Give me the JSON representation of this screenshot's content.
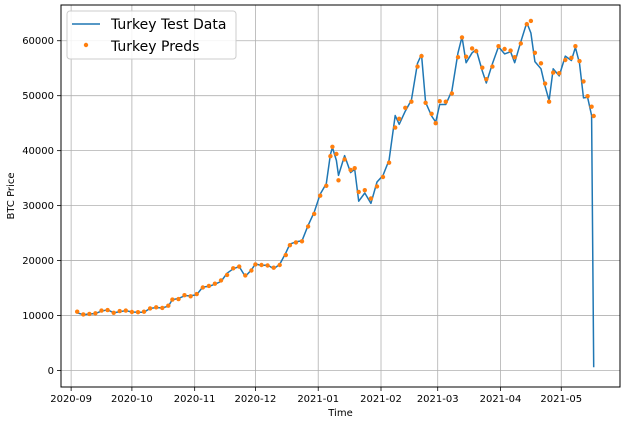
{
  "chart_data": {
    "type": "line",
    "title": "",
    "xlabel": "Time",
    "ylabel": "BTC Price",
    "grid": true,
    "legend_position": "top-left",
    "xlim": [
      "2020-08-27",
      "2021-05-30"
    ],
    "ylim": [
      -3000,
      66500
    ],
    "x_tick_labels": [
      "2020-09",
      "2020-10",
      "2020-11",
      "2020-12",
      "2021-01",
      "2021-02",
      "2021-03",
      "2021-04",
      "2021-05"
    ],
    "x_tick_values": [
      "2020-09-01",
      "2020-10-01",
      "2020-11-01",
      "2020-12-01",
      "2021-01-01",
      "2021-02-01",
      "2021-03-01",
      "2021-04-01",
      "2021-05-01"
    ],
    "y_tick_labels": [
      "0",
      "10000",
      "20000",
      "30000",
      "40000",
      "50000",
      "60000"
    ],
    "y_tick_values": [
      0,
      10000,
      20000,
      30000,
      40000,
      50000,
      60000
    ],
    "series": [
      {
        "name": "Turkey Test Data",
        "style": "line",
        "color": "#1f77b4",
        "points": [
          [
            "2020-09-04",
            10500
          ],
          [
            "2020-09-07",
            10150
          ],
          [
            "2020-09-10",
            10300
          ],
          [
            "2020-09-13",
            10350
          ],
          [
            "2020-09-16",
            10800
          ],
          [
            "2020-09-19",
            11050
          ],
          [
            "2020-09-22",
            10500
          ],
          [
            "2020-09-25",
            10700
          ],
          [
            "2020-09-28",
            10900
          ],
          [
            "2020-10-01",
            10650
          ],
          [
            "2020-10-04",
            10600
          ],
          [
            "2020-10-07",
            10600
          ],
          [
            "2020-10-10",
            11300
          ],
          [
            "2020-10-13",
            11450
          ],
          [
            "2020-10-16",
            11400
          ],
          [
            "2020-10-19",
            11700
          ],
          [
            "2020-10-21",
            12900
          ],
          [
            "2020-10-24",
            13100
          ],
          [
            "2020-10-27",
            13600
          ],
          [
            "2020-10-30",
            13600
          ],
          [
            "2020-11-02",
            13800
          ],
          [
            "2020-11-05",
            15200
          ],
          [
            "2020-11-08",
            15300
          ],
          [
            "2020-11-11",
            15700
          ],
          [
            "2020-11-14",
            16200
          ],
          [
            "2020-11-17",
            17700
          ],
          [
            "2020-11-20",
            18500
          ],
          [
            "2020-11-23",
            18900
          ],
          [
            "2020-11-26",
            17100
          ],
          [
            "2020-11-29",
            18300
          ],
          [
            "2020-12-01",
            19400
          ],
          [
            "2020-12-04",
            19100
          ],
          [
            "2020-12-07",
            19200
          ],
          [
            "2020-12-10",
            18500
          ],
          [
            "2020-12-13",
            19300
          ],
          [
            "2020-12-16",
            21400
          ],
          [
            "2020-12-18",
            23000
          ],
          [
            "2020-12-21",
            23400
          ],
          [
            "2020-12-24",
            23600
          ],
          [
            "2020-12-27",
            26400
          ],
          [
            "2020-12-30",
            28800
          ],
          [
            "2021-01-02",
            32100
          ],
          [
            "2021-01-05",
            34000
          ],
          [
            "2021-01-07",
            39300
          ],
          [
            "2021-01-08",
            40600
          ],
          [
            "2021-01-10",
            38200
          ],
          [
            "2021-01-11",
            35500
          ],
          [
            "2021-01-14",
            39100
          ],
          [
            "2021-01-17",
            36000
          ],
          [
            "2021-01-19",
            36600
          ],
          [
            "2021-01-21",
            30800
          ],
          [
            "2021-01-24",
            32300
          ],
          [
            "2021-01-27",
            30400
          ],
          [
            "2021-01-30",
            34300
          ],
          [
            "2021-02-02",
            35500
          ],
          [
            "2021-02-05",
            38300
          ],
          [
            "2021-02-08",
            46400
          ],
          [
            "2021-02-10",
            44800
          ],
          [
            "2021-02-13",
            47200
          ],
          [
            "2021-02-16",
            49200
          ],
          [
            "2021-02-19",
            55900
          ],
          [
            "2021-02-21",
            57500
          ],
          [
            "2021-02-23",
            48800
          ],
          [
            "2021-02-26",
            46300
          ],
          [
            "2021-02-28",
            45200
          ],
          [
            "2021-03-02",
            48400
          ],
          [
            "2021-03-05",
            48400
          ],
          [
            "2021-03-08",
            50900
          ],
          [
            "2021-03-11",
            57800
          ],
          [
            "2021-03-13",
            60700
          ],
          [
            "2021-03-15",
            56000
          ],
          [
            "2021-03-18",
            57800
          ],
          [
            "2021-03-20",
            58400
          ],
          [
            "2021-03-23",
            54500
          ],
          [
            "2021-03-25",
            52300
          ],
          [
            "2021-03-28",
            55800
          ],
          [
            "2021-03-31",
            58900
          ],
          [
            "2021-04-03",
            57600
          ],
          [
            "2021-04-06",
            58000
          ],
          [
            "2021-04-08",
            56000
          ],
          [
            "2021-04-11",
            59800
          ],
          [
            "2021-04-14",
            63300
          ],
          [
            "2021-04-16",
            61400
          ],
          [
            "2021-04-18",
            56200
          ],
          [
            "2021-04-21",
            54900
          ],
          [
            "2021-04-23",
            51700
          ],
          [
            "2021-04-25",
            49100
          ],
          [
            "2021-04-27",
            54900
          ],
          [
            "2021-04-30",
            53600
          ],
          [
            "2021-05-03",
            57200
          ],
          [
            "2021-05-06",
            56400
          ],
          [
            "2021-05-08",
            58800
          ],
          [
            "2021-05-10",
            55900
          ],
          [
            "2021-05-12",
            49600
          ],
          [
            "2021-05-14",
            49700
          ],
          [
            "2021-05-16",
            46400
          ],
          [
            "2021-05-17",
            600
          ]
        ]
      },
      {
        "name": "Turkey Preds",
        "style": "scatter",
        "color": "#ff7f0e",
        "points": [
          [
            "2020-09-04",
            10700
          ],
          [
            "2020-09-07",
            10200
          ],
          [
            "2020-09-10",
            10300
          ],
          [
            "2020-09-13",
            10400
          ],
          [
            "2020-09-16",
            10900
          ],
          [
            "2020-09-19",
            11000
          ],
          [
            "2020-09-22",
            10500
          ],
          [
            "2020-09-25",
            10800
          ],
          [
            "2020-09-28",
            10900
          ],
          [
            "2020-10-01",
            10650
          ],
          [
            "2020-10-04",
            10600
          ],
          [
            "2020-10-07",
            10700
          ],
          [
            "2020-10-10",
            11300
          ],
          [
            "2020-10-13",
            11500
          ],
          [
            "2020-10-16",
            11400
          ],
          [
            "2020-10-19",
            11800
          ],
          [
            "2020-10-21",
            12900
          ],
          [
            "2020-10-24",
            13000
          ],
          [
            "2020-10-27",
            13700
          ],
          [
            "2020-10-30",
            13500
          ],
          [
            "2020-11-02",
            13900
          ],
          [
            "2020-11-05",
            15100
          ],
          [
            "2020-11-08",
            15400
          ],
          [
            "2020-11-11",
            15800
          ],
          [
            "2020-11-14",
            16400
          ],
          [
            "2020-11-17",
            17400
          ],
          [
            "2020-11-20",
            18600
          ],
          [
            "2020-11-23",
            18900
          ],
          [
            "2020-11-26",
            17300
          ],
          [
            "2020-11-29",
            18200
          ],
          [
            "2020-12-01",
            19300
          ],
          [
            "2020-12-04",
            19200
          ],
          [
            "2020-12-07",
            19100
          ],
          [
            "2020-12-10",
            18700
          ],
          [
            "2020-12-13",
            19200
          ],
          [
            "2020-12-16",
            21000
          ],
          [
            "2020-12-18",
            22800
          ],
          [
            "2020-12-21",
            23300
          ],
          [
            "2020-12-24",
            23500
          ],
          [
            "2020-12-27",
            26200
          ],
          [
            "2020-12-30",
            28500
          ],
          [
            "2021-01-02",
            31800
          ],
          [
            "2021-01-05",
            33600
          ],
          [
            "2021-01-07",
            39000
          ],
          [
            "2021-01-08",
            40700
          ],
          [
            "2021-01-10",
            39400
          ],
          [
            "2021-01-11",
            34600
          ],
          [
            "2021-01-14",
            38400
          ],
          [
            "2021-01-17",
            36500
          ],
          [
            "2021-01-19",
            36800
          ],
          [
            "2021-01-21",
            32500
          ],
          [
            "2021-01-24",
            32800
          ],
          [
            "2021-01-27",
            31300
          ],
          [
            "2021-01-30",
            33500
          ],
          [
            "2021-02-02",
            35200
          ],
          [
            "2021-02-05",
            37800
          ],
          [
            "2021-02-08",
            44200
          ],
          [
            "2021-02-10",
            45800
          ],
          [
            "2021-02-13",
            47800
          ],
          [
            "2021-02-16",
            48900
          ],
          [
            "2021-02-19",
            55300
          ],
          [
            "2021-02-21",
            57200
          ],
          [
            "2021-02-23",
            48700
          ],
          [
            "2021-02-26",
            46700
          ],
          [
            "2021-02-28",
            45000
          ],
          [
            "2021-03-02",
            49000
          ],
          [
            "2021-03-05",
            48900
          ],
          [
            "2021-03-08",
            50400
          ],
          [
            "2021-03-11",
            57000
          ],
          [
            "2021-03-13",
            60600
          ],
          [
            "2021-03-15",
            57100
          ],
          [
            "2021-03-18",
            58600
          ],
          [
            "2021-03-20",
            58100
          ],
          [
            "2021-03-23",
            55100
          ],
          [
            "2021-03-25",
            53000
          ],
          [
            "2021-03-28",
            55300
          ],
          [
            "2021-03-31",
            59000
          ],
          [
            "2021-04-03",
            58500
          ],
          [
            "2021-04-06",
            58200
          ],
          [
            "2021-04-08",
            57000
          ],
          [
            "2021-04-11",
            59500
          ],
          [
            "2021-04-14",
            63000
          ],
          [
            "2021-04-16",
            63600
          ],
          [
            "2021-04-18",
            57800
          ],
          [
            "2021-04-21",
            55900
          ],
          [
            "2021-04-23",
            52200
          ],
          [
            "2021-04-25",
            48900
          ],
          [
            "2021-04-27",
            54200
          ],
          [
            "2021-04-30",
            54100
          ],
          [
            "2021-05-03",
            56500
          ],
          [
            "2021-05-06",
            56900
          ],
          [
            "2021-05-08",
            59000
          ],
          [
            "2021-05-10",
            56300
          ],
          [
            "2021-05-12",
            52600
          ],
          [
            "2021-05-14",
            49900
          ],
          [
            "2021-05-16",
            48000
          ],
          [
            "2021-05-17",
            46300
          ]
        ]
      }
    ]
  }
}
